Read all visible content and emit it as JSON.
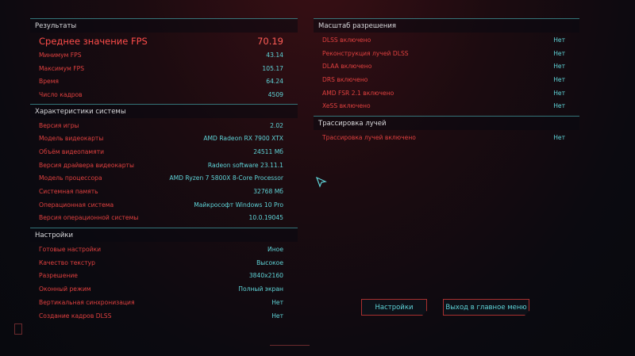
{
  "results": {
    "title": "Результаты",
    "rows": [
      {
        "label": "Среднее значение FPS",
        "value": "70.19"
      },
      {
        "label": "Минимум FPS",
        "value": "43.14"
      },
      {
        "label": "Максимум FPS",
        "value": "105.17"
      },
      {
        "label": "Время",
        "value": "64.24"
      },
      {
        "label": "Число кадров",
        "value": "4509"
      }
    ]
  },
  "system": {
    "title": "Характеристики системы",
    "rows": [
      {
        "label": "Версия игры",
        "value": "2.02"
      },
      {
        "label": "Модель видеокарты",
        "value": "AMD Radeon RX 7900 XTX"
      },
      {
        "label": "Объём видеопамяти",
        "value": "24511 Мб"
      },
      {
        "label": "Версия драйвера видеокарты",
        "value": "Radeon software 23.11.1"
      },
      {
        "label": "Модель процессора",
        "value": "AMD Ryzen 7 5800X 8-Core Processor"
      },
      {
        "label": "Системная память",
        "value": "32768 Мб"
      },
      {
        "label": "Операционная система",
        "value": "Майкрософт Windows 10 Pro"
      },
      {
        "label": "Версия операционной системы",
        "value": "10.0.19045"
      }
    ]
  },
  "settings": {
    "title": "Настройки",
    "rows": [
      {
        "label": "Готовые настройки",
        "value": "Иное"
      },
      {
        "label": "Качество текстур",
        "value": "Высокое"
      },
      {
        "label": "Разрешение",
        "value": "3840x2160"
      },
      {
        "label": "Оконный режим",
        "value": "Полный экран"
      },
      {
        "label": "Вертикальная синхронизация",
        "value": "Нет"
      },
      {
        "label": "Создание кадров DLSS",
        "value": "Нет"
      }
    ]
  },
  "scaling": {
    "title": "Масштаб разрешения",
    "rows": [
      {
        "label": "DLSS включено",
        "value": "Нет"
      },
      {
        "label": "Реконструкция лучей DLSS",
        "value": "Нет"
      },
      {
        "label": "DLAA включено",
        "value": "Нет"
      },
      {
        "label": "DRS включено",
        "value": "Нет"
      },
      {
        "label": "AMD FSR 2.1 включено",
        "value": "Нет"
      },
      {
        "label": "XeSS включено",
        "value": "Нет"
      }
    ]
  },
  "raytracing": {
    "title": "Трассировка лучей",
    "rows": [
      {
        "label": "Трассировка лучей включено",
        "value": "Нет"
      }
    ]
  },
  "buttons": {
    "settings": "Настройки",
    "exit": "Выход в главное меню"
  },
  "colors": {
    "label": "#e0403f",
    "value": "#5fd4d8",
    "accent_line": "#3d8f93",
    "button_border": "#a8302f"
  }
}
